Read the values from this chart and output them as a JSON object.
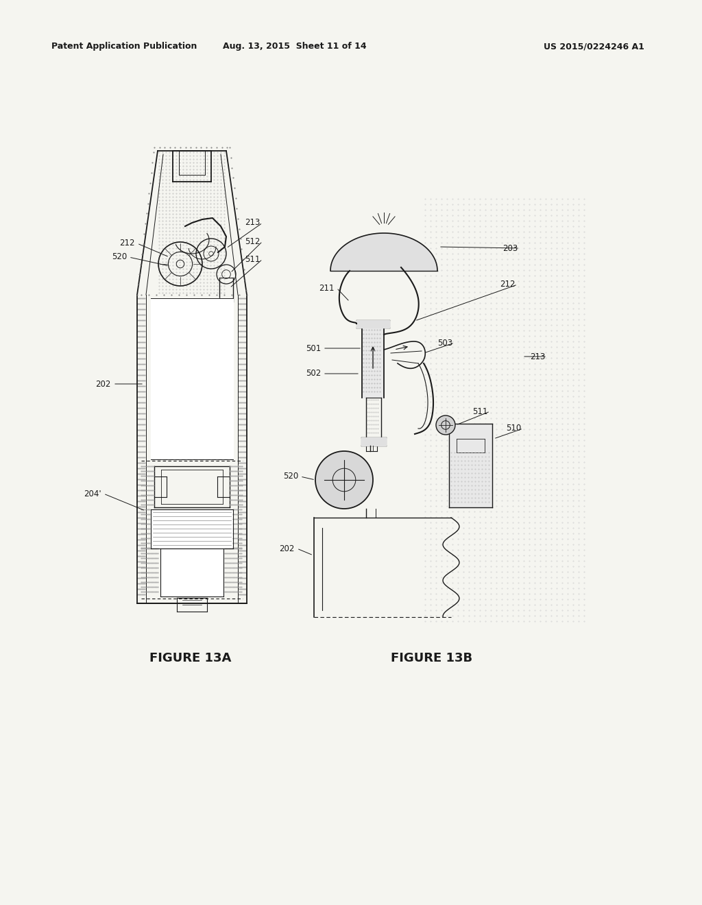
{
  "background_color": "#f5f5f0",
  "header_left": "Patent Application Publication",
  "header_center": "Aug. 13, 2015  Sheet 11 of 14",
  "header_right": "US 2015/0224246 A1",
  "figure_a_label": "FIGURE 13A",
  "figure_b_label": "FIGURE 13B",
  "page_bg": "#f0f0ec",
  "draw_bg": "#e8e8e4"
}
